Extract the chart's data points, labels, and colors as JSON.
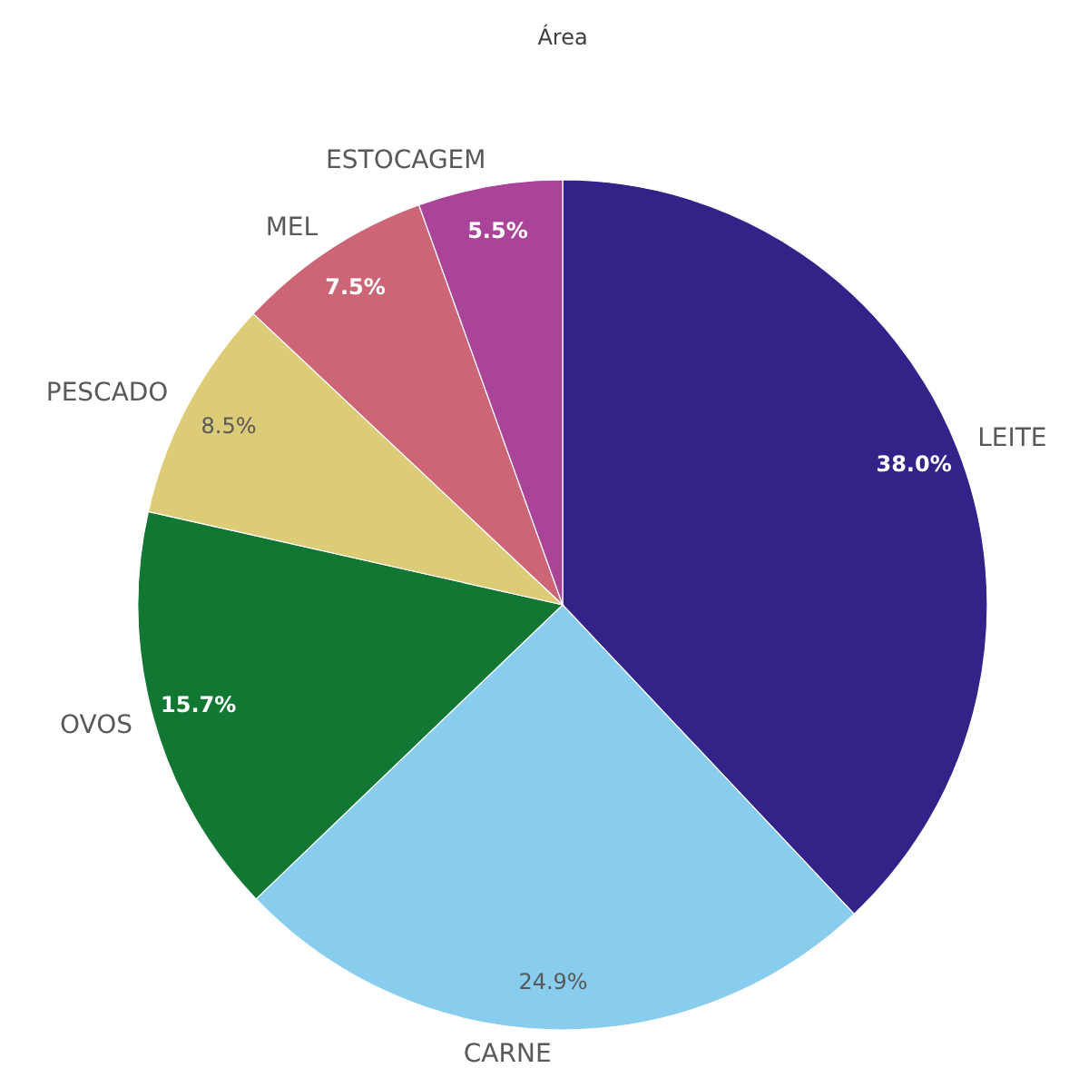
{
  "chart_data": {
    "type": "pie",
    "title": "Área",
    "categories": [
      "LEITE",
      "CARNE",
      "OVOS",
      "PESCADO",
      "MEL",
      "ESTOCAGEM"
    ],
    "values": [
      38.0,
      24.9,
      15.7,
      8.5,
      7.5,
      5.5
    ],
    "colors": [
      "#332288",
      "#88ccee",
      "#117733",
      "#ddcc77",
      "#cc6677",
      "#aa4499"
    ],
    "value_labels": [
      "38.0%",
      "24.9%",
      "15.7%",
      "8.5%",
      "7.5%",
      "5.5%"
    ]
  }
}
